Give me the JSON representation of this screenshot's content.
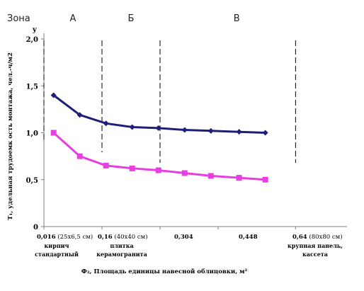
{
  "chart_data": {
    "type": "line",
    "title": "",
    "ylabel": "Т₁, удельная трудоемк ость монтажа, чел.-ч/м2",
    "y_letter": "y",
    "xlabel": "Ф₂, Площадь единицы навесной облицовки, м²",
    "ylim": [
      0,
      2.0
    ],
    "y_ticks": [
      "0",
      "0,5",
      "1,0",
      "1,5",
      "2,0"
    ],
    "y_tick_values": [
      0,
      0.5,
      1.0,
      1.5,
      2.0
    ],
    "x_tick_values": [
      0.016,
      0.16,
      0.304,
      0.448,
      0.64
    ],
    "x_ticks": [
      {
        "num": "0,016",
        "rest": " (25х6,5 см)",
        "sub": [
          "кирпич",
          "стандартный"
        ]
      },
      {
        "num": "0,16",
        "rest": " (40х40 см)",
        "sub": [
          "плитка",
          "керамогранита"
        ]
      },
      {
        "num": "0,304",
        "rest": "",
        "sub": []
      },
      {
        "num": "0,448",
        "rest": "",
        "sub": []
      },
      {
        "num": "0,64",
        "rest": " (80х80 см)",
        "sub": [
          "крупная панель,",
          "кассета"
        ]
      }
    ],
    "grid": false,
    "zones": {
      "label": "Зона",
      "items": [
        {
          "name": "А",
          "at": 0.088
        },
        {
          "name": "Б",
          "at": 0.232
        },
        {
          "name": "В",
          "at": 0.494
        }
      ],
      "boundaries": [
        0.016,
        0.16,
        0.304,
        0.64
      ]
    },
    "series": [
      {
        "name": "",
        "color": "#1f1f7a",
        "marker": "diamond",
        "x": [
          0.04,
          0.105,
          0.17,
          0.235,
          0.3,
          0.365,
          0.43,
          0.5,
          0.565
        ],
        "y": [
          1.4,
          1.19,
          1.1,
          1.06,
          1.05,
          1.03,
          1.02,
          1.01,
          1.0
        ]
      },
      {
        "name": "",
        "color": "#e63ee0",
        "marker": "square",
        "x": [
          0.04,
          0.105,
          0.17,
          0.235,
          0.3,
          0.365,
          0.43,
          0.5,
          0.565
        ],
        "y": [
          1.0,
          0.75,
          0.65,
          0.62,
          0.6,
          0.57,
          0.54,
          0.52,
          0.5
        ]
      }
    ]
  }
}
